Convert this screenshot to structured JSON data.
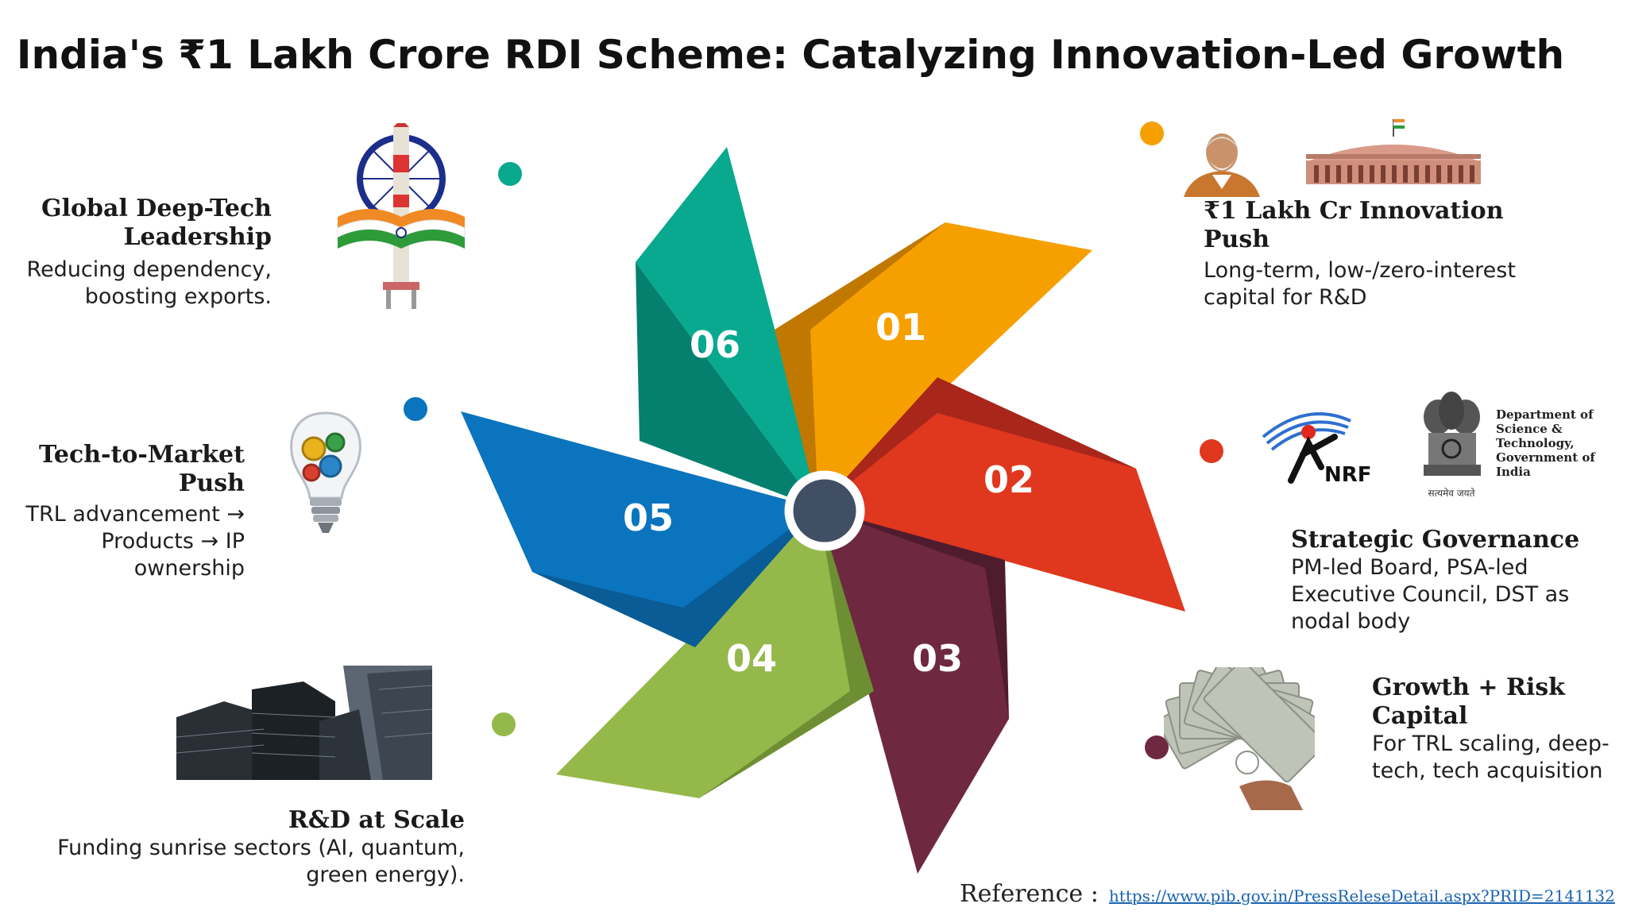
{
  "title": "India's ₹1 Lakh Crore RDI Scheme: Catalyzing Innovation-Led Growth",
  "petals": [
    {
      "number": "01",
      "color": "#F6A000",
      "shade": "#C07800"
    },
    {
      "number": "02",
      "color": "#E0371F",
      "shade": "#A8261A"
    },
    {
      "number": "03",
      "color": "#6E2840",
      "shade": "#4F1C2E"
    },
    {
      "number": "04",
      "color": "#94B84A",
      "shade": "#6E8E33"
    },
    {
      "number": "05",
      "color": "#0B74BE",
      "shade": "#095C95"
    },
    {
      "number": "06",
      "color": "#08A98F",
      "shade": "#06806E"
    }
  ],
  "center_color": "#414F64",
  "blocks": {
    "b01": {
      "heading": "₹1 Lakh Cr Innovation Push",
      "desc": " Long-term, low-/zero-interest capital for R&D",
      "dot_color": "#F6A000"
    },
    "b02": {
      "heading": "Strategic Governance",
      "desc": " PM-led Board, PSA-led Executive Council, DST as nodal body",
      "dot_color": "#E0371F"
    },
    "b03": {
      "heading": "Growth + Risk Capital",
      "desc": "For TRL scaling, deep-tech, tech acquisition",
      "dot_color": "#6E2840"
    },
    "b04": {
      "heading": "R&D at Scale",
      "desc": "Funding sunrise sectors (AI, quantum, green energy).",
      "dot_color": "#94B84A"
    },
    "b05": {
      "heading": "Tech-to-Market Push",
      "desc": "TRL advancement → Products → IP ownership",
      "dot_color": "#0B74BE"
    },
    "b06": {
      "heading": "Global Deep-Tech Leadership",
      "desc": "Reducing dependency, boosting exports.",
      "dot_color": "#08A98F"
    }
  },
  "logos": {
    "nrf": "NRF",
    "dst": "Department of Science & Technology, Government of India",
    "dst_motto": "सत्यमेव जयते"
  },
  "reference": {
    "label": "Reference :",
    "url": "https://www.pib.gov.in/PressReleseDetail.aspx?PRID=2141132"
  }
}
